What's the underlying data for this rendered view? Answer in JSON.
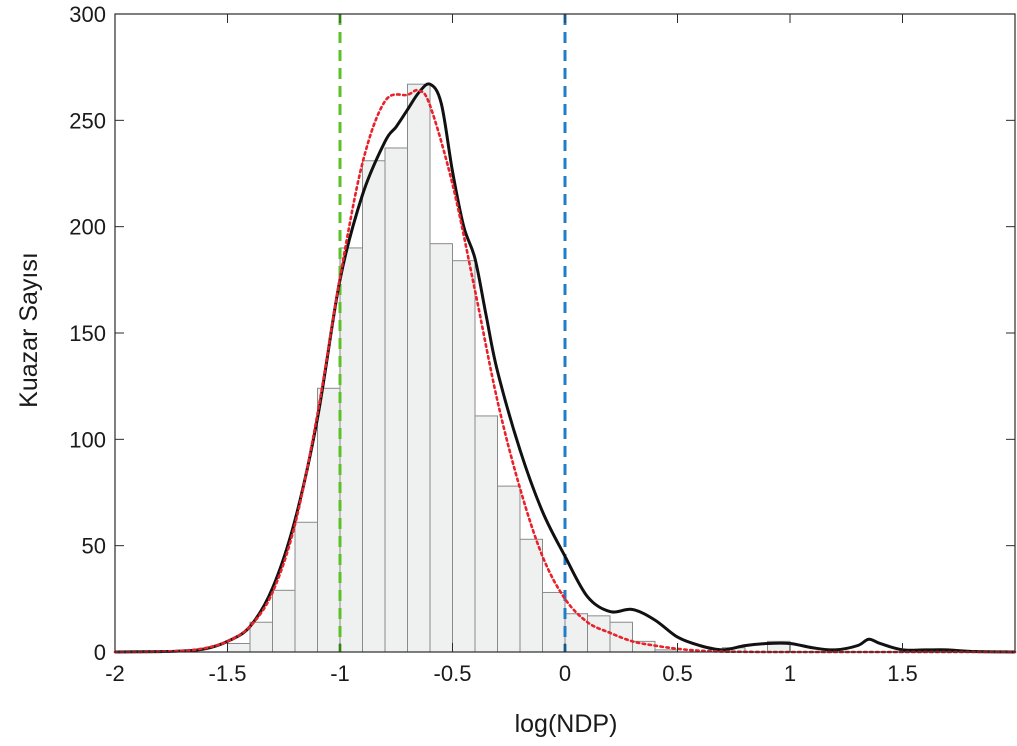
{
  "chart_data": {
    "type": "bar",
    "xlabel": "log(NDP)",
    "ylabel": "Kuazar Sayısı",
    "xlim": [
      -2,
      2
    ],
    "ylim": [
      0,
      300
    ],
    "grid": false,
    "x_ticks": [
      -2,
      -1.5,
      -1,
      -0.5,
      0,
      0.5,
      1,
      1.5
    ],
    "x_tick_labels": [
      "-2",
      "-1.5",
      "-1",
      "-0.5",
      "0",
      "0.5",
      "1",
      "1.5"
    ],
    "y_ticks": [
      0,
      50,
      100,
      150,
      200,
      250,
      300
    ],
    "y_tick_labels": [
      "0",
      "50",
      "100",
      "150",
      "200",
      "250",
      "300"
    ],
    "histogram": {
      "bin_width": 0.1,
      "bin_centers": [
        -1.95,
        -1.85,
        -1.75,
        -1.65,
        -1.55,
        -1.45,
        -1.35,
        -1.25,
        -1.15,
        -1.05,
        -0.95,
        -0.85,
        -0.75,
        -0.65,
        -0.55,
        -0.45,
        -0.35,
        -0.25,
        -0.15,
        -0.05,
        0.05,
        0.15,
        0.25,
        0.35,
        0.45,
        0.55,
        0.65,
        0.75,
        0.85,
        0.95,
        1.05,
        1.15,
        1.25,
        1.35,
        1.45,
        1.55,
        1.65,
        1.75,
        1.85,
        1.95
      ],
      "counts": [
        0,
        0,
        0,
        0,
        0,
        4,
        14,
        29,
        61,
        124,
        190,
        231,
        237,
        267,
        192,
        184,
        111,
        78,
        53,
        28,
        18,
        17,
        14,
        5,
        1,
        0,
        0,
        2,
        0,
        5,
        0,
        0,
        0,
        0,
        0,
        0,
        1,
        0,
        0,
        0
      ],
      "fill": "#eff1f1",
      "stroke": "#8a8a8a"
    },
    "series": [
      {
        "style": "solid",
        "color": "#111111",
        "x": [
          -2.0,
          -1.8,
          -1.7,
          -1.6,
          -1.5,
          -1.4,
          -1.3,
          -1.2,
          -1.1,
          -1.0,
          -0.9,
          -0.8,
          -0.75,
          -0.7,
          -0.65,
          -0.6,
          -0.55,
          -0.5,
          -0.45,
          -0.4,
          -0.35,
          -0.3,
          -0.2,
          -0.1,
          0.0,
          0.1,
          0.2,
          0.3,
          0.4,
          0.5,
          0.6,
          0.7,
          0.8,
          0.9,
          1.0,
          1.1,
          1.2,
          1.3,
          1.35,
          1.4,
          1.5,
          1.6,
          1.7,
          1.8,
          2.0
        ],
        "y": [
          0,
          0.2,
          0.5,
          1.5,
          5,
          12,
          30,
          62,
          110,
          175,
          215,
          240,
          247,
          255,
          263,
          267,
          258,
          226,
          200,
          185,
          158,
          132,
          95,
          66,
          45,
          26,
          19,
          20,
          15,
          7,
          3,
          1,
          3,
          4,
          4,
          2,
          1,
          3,
          6,
          4,
          1,
          1,
          1,
          0.3,
          0
        ]
      },
      {
        "style": "dotted",
        "color": "#e8212a",
        "x": [
          -2.0,
          -1.9,
          -1.8,
          -1.7,
          -1.6,
          -1.5,
          -1.4,
          -1.3,
          -1.2,
          -1.1,
          -1.0,
          -0.9,
          -0.8,
          -0.7,
          -0.65,
          -0.6,
          -0.5,
          -0.4,
          -0.3,
          -0.2,
          -0.1,
          0.0,
          0.1,
          0.2,
          0.3,
          0.4,
          0.5,
          0.6,
          0.7,
          0.8,
          0.9,
          1.0,
          1.2,
          1.4,
          1.6,
          1.8,
          2.0
        ],
        "y": [
          0,
          0,
          0.2,
          0.6,
          1.8,
          5,
          12,
          28,
          60,
          112,
          176,
          230,
          259,
          262,
          264,
          257,
          220,
          170,
          118,
          77,
          45,
          25,
          14,
          9,
          5,
          3,
          1.5,
          0.6,
          0.2,
          0.1,
          0,
          0,
          0,
          0,
          0,
          0,
          0
        ]
      }
    ],
    "vertical_lines": [
      {
        "x": -1,
        "color": "#5cc02a",
        "style": "dashed"
      },
      {
        "x": 0,
        "color": "#1f7ec7",
        "style": "dashed"
      }
    ]
  }
}
